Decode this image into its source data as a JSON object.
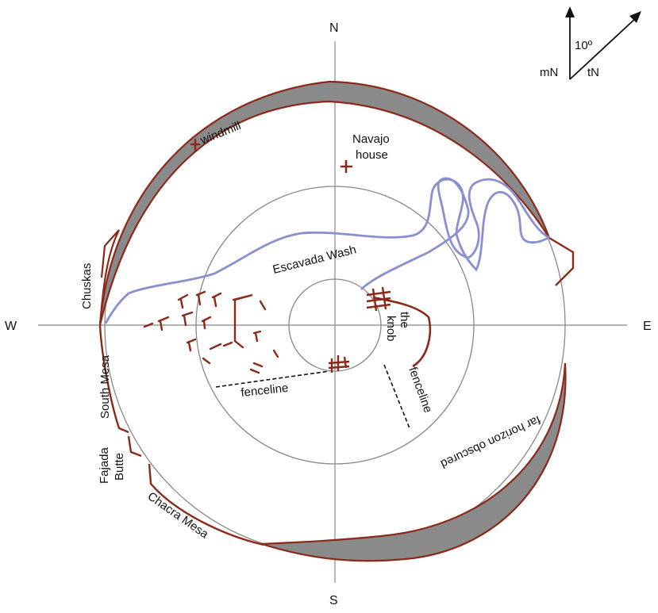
{
  "cardinals": {
    "north": "N",
    "south": "S",
    "east": "E",
    "west": "W"
  },
  "north_arrow": {
    "angle": "10º",
    "magnetic": "mN",
    "true": "tN"
  },
  "labels": {
    "windmill": "windmill",
    "navajo_house_line1": "Navajo",
    "navajo_house_line2": "house",
    "chuskas": "Chuskas",
    "escavada_wash": "Escavada Wash",
    "the_knob_line1": "the",
    "the_knob_line2": "knob",
    "south_mesa": "South Mesa",
    "fajada_butte_line1": "Fajada",
    "fajada_butte_line2": "Butte",
    "chacra_mesa": "Chacra Mesa",
    "fenceline_left": "fenceline",
    "fenceline_right": "fenceline",
    "far_horizon": "far horizon obscured"
  },
  "colors": {
    "ridge": "#8b2a1a",
    "wash": "#8a8fd0",
    "horizon_fill": "#8a8a8a",
    "circle": "#888888"
  }
}
